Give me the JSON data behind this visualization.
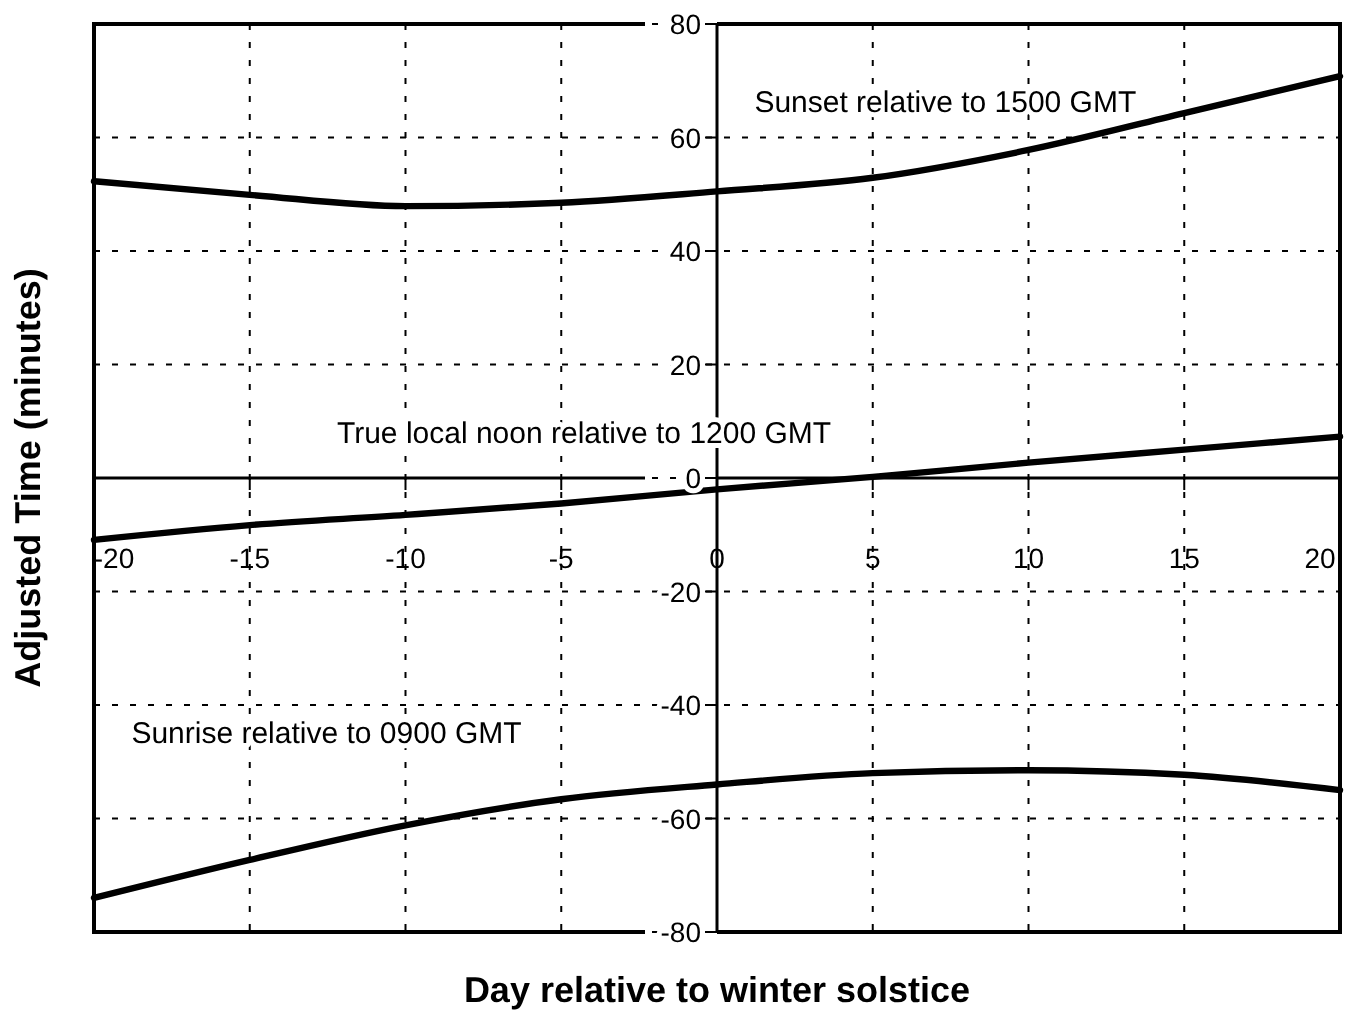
{
  "chart_data": {
    "type": "line",
    "xlabel": "Day relative to winter solstice",
    "ylabel": "Adjusted Time (minutes)",
    "x": [
      -20,
      -15,
      -10,
      -5,
      0,
      5,
      10,
      15,
      20
    ],
    "series": [
      {
        "color": "#000000",
        "values": [
          52.3,
          49.9,
          47.9,
          48.5,
          50.5,
          52.9,
          57.8,
          64.3,
          70.8
        ]
      },
      {
        "color": "#000000",
        "values": [
          -10.9,
          -8.3,
          -6.5,
          -4.5,
          -2.0,
          0.2,
          2.7,
          5.0,
          7.3
        ]
      },
      {
        "color": "#000000",
        "values": [
          -74,
          -67.3,
          -61.2,
          -56.6,
          -54,
          -52,
          -51.5,
          -52.3,
          -55
        ]
      }
    ],
    "annotations": [
      "Sunset relative to 1500 GMT",
      "True local noon relative to 1200 GMT",
      "Sunrise relative to 0900 GMT"
    ],
    "xlim": [
      -20,
      20
    ],
    "xticks": [
      -20,
      -15,
      -10,
      -5,
      0,
      5,
      10,
      15,
      20
    ],
    "ylim": [
      -80,
      80
    ],
    "yticks": [
      -80,
      -60,
      -40,
      -20,
      0,
      20,
      40,
      60,
      80
    ],
    "grid": true,
    "marker": "none",
    "line_style": "solid"
  }
}
